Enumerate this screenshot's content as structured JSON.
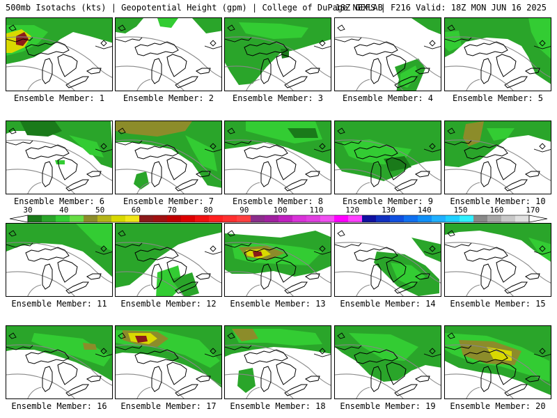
{
  "header": {
    "left_title": "500mb Isotachs (kts) | Geopotential Height (gpm) | College of DuPage NEXLAB",
    "right_title": "18Z GEFS | F216 Valid: 18Z MON JUN 16 2025"
  },
  "colors": {
    "panel_border": "#000000",
    "background": "#ffffff",
    "coastline": "#000000",
    "height_contour": "#888888"
  },
  "colorbar": {
    "ticks": [
      "30",
      "40",
      "50",
      "60",
      "70",
      "80",
      "90",
      "100",
      "110",
      "120",
      "130",
      "140",
      "150",
      "160",
      "170"
    ],
    "colors": [
      "#1a7a1a",
      "#2aa52a",
      "#33cc33",
      "#66dd44",
      "#8c8c2a",
      "#b5b51a",
      "#d9d900",
      "#f2e61a",
      "#8b1a1a",
      "#a01010",
      "#c00000",
      "#dd0000",
      "#f01010",
      "#ff2020",
      "#ff3030",
      "#ff4040",
      "#8b2d8b",
      "#a020a0",
      "#c020c0",
      "#d932d9",
      "#e040e0",
      "#f050f0",
      "#ff00ff",
      "#ff40ff",
      "#1010a0",
      "#1030c0",
      "#1050e0",
      "#1070f0",
      "#1090f8",
      "#20b0ff",
      "#20d0ff",
      "#30f0ff",
      "#888888",
      "#a8a8a8",
      "#c8c8c8",
      "#e0e0e0"
    ]
  },
  "members": [
    {
      "label": "Ensemble Member: 1"
    },
    {
      "label": "Ensemble Member: 2"
    },
    {
      "label": "Ensemble Member: 3"
    },
    {
      "label": "Ensemble Member: 4"
    },
    {
      "label": "Ensemble Member: 5"
    },
    {
      "label": "Ensemble Member: 6"
    },
    {
      "label": "Ensemble Member: 7"
    },
    {
      "label": "Ensemble Member: 8"
    },
    {
      "label": "Ensemble Member: 9"
    },
    {
      "label": "Ensemble Member: 10"
    },
    {
      "label": "Ensemble Member: 11"
    },
    {
      "label": "Ensemble Member: 12"
    },
    {
      "label": "Ensemble Member: 13"
    },
    {
      "label": "Ensemble Member: 14"
    },
    {
      "label": "Ensemble Member: 15"
    },
    {
      "label": "Ensemble Member: 16"
    },
    {
      "label": "Ensemble Member: 17"
    },
    {
      "label": "Ensemble Member: 18"
    },
    {
      "label": "Ensemble Member: 19"
    },
    {
      "label": "Ensemble Member: 20"
    }
  ]
}
